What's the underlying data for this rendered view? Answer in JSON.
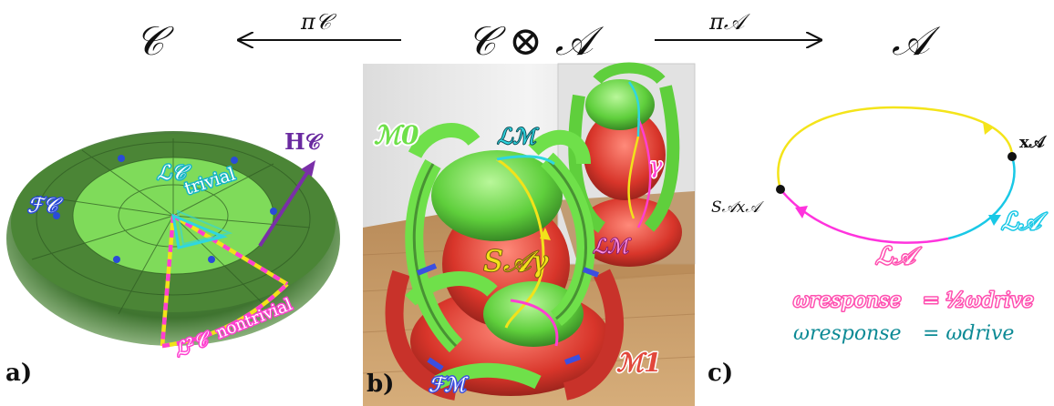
{
  "top": {
    "left_space": "𝒞",
    "product_space": "𝒞 ⊗ 𝒜",
    "right_space": "𝒜",
    "left_map": "π𝒞",
    "right_map": "π𝒜"
  },
  "panel_a": {
    "tag": "a)",
    "h_label": "H𝒞",
    "f_label": "ℱ𝒞",
    "trivial_loop": "ℒ𝒞",
    "trivial_word": "trivial",
    "nontrivial_loop": "ℒ²𝒞",
    "nontrivial_word": "nontrivial",
    "colors": {
      "outer_disk": "#4f8a3a",
      "inner_disk": "#7ed957",
      "loop_pink": "#ff3fd0",
      "loop_yellow": "#f2e21a",
      "cyan": "#2fd6e0",
      "arrow": "#7a2fa8"
    }
  },
  "panel_b": {
    "tag": "b)",
    "m0": "ℳ0",
    "m1": "ℳ1",
    "lm_top": "ℒℳ",
    "lm_mirror": "ℒℳ",
    "gamma": "γ",
    "sa_gamma": "S𝒜γ",
    "f_m": "ℱℳ",
    "colors": {
      "green": "#6fe04a",
      "red": "#e2483c",
      "floor": "#c79a63",
      "wall": "#e8e8e8"
    }
  },
  "panel_c": {
    "tag": "c)",
    "x_a": "x𝒜",
    "sx_a": "S𝒜x𝒜",
    "l_a_right": "ℒ𝒜",
    "l_a_bottom": "ℒ𝒜",
    "eq1_lhs": "ωresponse",
    "eq1_rhs": "= ½ωdrive",
    "eq2_lhs": "ωresponse",
    "eq2_rhs": "= ωdrive",
    "colors": {
      "yellow": "#f4e41a",
      "cyan": "#19c8e6",
      "magenta": "#ff33dd",
      "eq1": "#ff4fb0",
      "eq2": "#0c8a95"
    }
  }
}
